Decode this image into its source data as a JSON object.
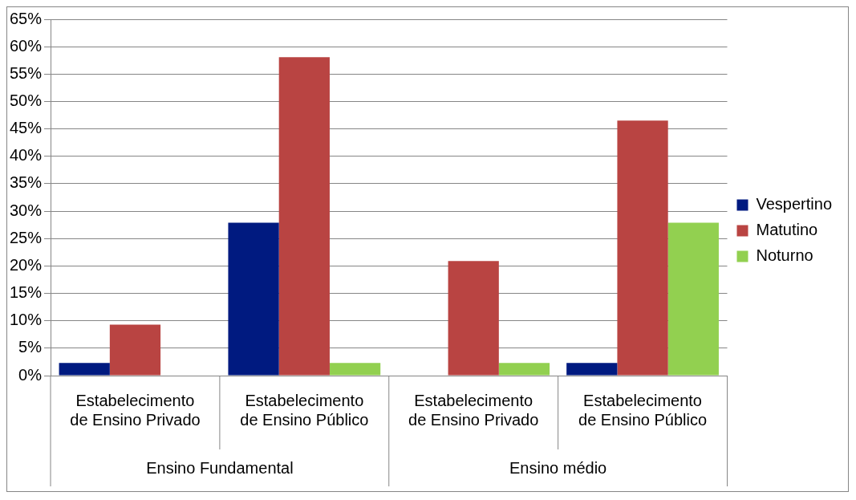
{
  "chart_data": {
    "type": "bar",
    "categories": [
      "Estabelecimento de Ensino Privado",
      "Estabelecimento de Ensino Público",
      "Estabelecimento de Ensino Privado",
      "Estabelecimento de Ensino Público"
    ],
    "series": [
      {
        "name": "Vespertino",
        "color": "#001a80",
        "values": [
          2.3,
          27.9,
          0,
          2.3
        ]
      },
      {
        "name": "Matutino",
        "color": "#b94442",
        "values": [
          9.3,
          58.1,
          20.9,
          46.5
        ]
      },
      {
        "name": "Noturno",
        "color": "#92d050",
        "values": [
          0,
          2.3,
          2.3,
          27.9
        ]
      }
    ],
    "annotations": [
      "Ensino Fundamental",
      "Ensino médio"
    ],
    "ylim": [
      0,
      65
    ],
    "yticks": [
      {
        "value": 0,
        "label": "0%"
      },
      {
        "value": 5,
        "label": "5%"
      },
      {
        "value": 10,
        "label": "10%"
      },
      {
        "value": 15,
        "label": "15%"
      },
      {
        "value": 20,
        "label": "20%"
      },
      {
        "value": 25,
        "label": "25%"
      },
      {
        "value": 30,
        "label": "30%"
      },
      {
        "value": 35,
        "label": "35%"
      },
      {
        "value": 40,
        "label": "40%"
      },
      {
        "value": 45,
        "label": "45%"
      },
      {
        "value": 50,
        "label": "50%"
      },
      {
        "value": 55,
        "label": "55%"
      },
      {
        "value": 60,
        "label": "60%"
      },
      {
        "value": 65,
        "label": "65%"
      }
    ],
    "grid": "y",
    "legend": "right"
  }
}
